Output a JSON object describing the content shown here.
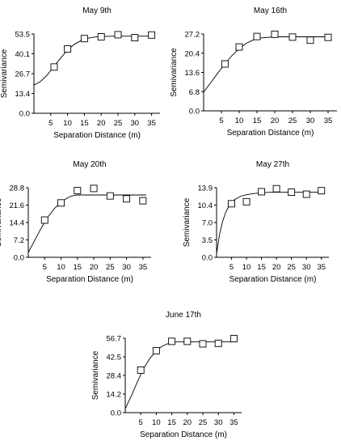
{
  "chart_data": [
    {
      "type": "scatter",
      "title": "May 9th",
      "xlabel": "Separation Distance (m)",
      "ylabel": "Semivariance",
      "xlim": [
        0,
        37.5
      ],
      "ylim": [
        0,
        53.5
      ],
      "xticks": [
        "5",
        "10",
        "15",
        "20",
        "25",
        "30",
        "35"
      ],
      "yticks": [
        "0.0",
        "13.4",
        "26.7",
        "40.1",
        "53.5"
      ],
      "points": {
        "x": [
          6,
          10,
          15,
          20,
          25,
          30,
          35
        ],
        "y": [
          31.2,
          43.4,
          50.4,
          51.6,
          53.0,
          51.0,
          52.8
        ]
      },
      "curve": {
        "x": [
          0,
          2,
          4,
          6,
          8,
          10,
          12,
          14,
          16,
          18,
          20,
          24,
          28,
          32,
          36
        ],
        "y": [
          19.0,
          21.5,
          26.0,
          31.7,
          37.5,
          42.6,
          46.5,
          49.0,
          50.6,
          51.4,
          51.8,
          52.0,
          52.0,
          52.0,
          52.0
        ]
      }
    },
    {
      "type": "scatter",
      "title": "May 16th",
      "xlabel": "Separation Distance (m)",
      "ylabel": "Semivariance",
      "xlim": [
        0,
        37.5
      ],
      "ylim": [
        0,
        27.2
      ],
      "xticks": [
        "5",
        "10",
        "15",
        "20",
        "25",
        "30",
        "35"
      ],
      "yticks": [
        "0.0",
        "6.8",
        "13.6",
        "20.4",
        "27.2"
      ],
      "points": {
        "x": [
          6,
          10,
          15,
          20,
          25,
          30,
          35
        ],
        "y": [
          16.6,
          22.6,
          26.3,
          27.1,
          26.1,
          25.0,
          26.0
        ]
      },
      "curve": {
        "x": [
          0,
          2,
          4,
          6,
          8,
          10,
          12,
          14,
          16,
          20,
          24,
          28,
          32,
          36
        ],
        "y": [
          6.6,
          10.0,
          13.4,
          16.6,
          19.6,
          22.0,
          23.9,
          25.1,
          25.8,
          26.2,
          26.2,
          26.2,
          26.2,
          26.2
        ]
      }
    },
    {
      "type": "scatter",
      "title": "May 20th",
      "xlabel": "Separation Distance (m)",
      "ylabel": "Semivariance",
      "xlim": [
        0,
        37.5
      ],
      "ylim": [
        0,
        28.8
      ],
      "xticks": [
        "5",
        "10",
        "15",
        "20",
        "25",
        "30",
        "35"
      ],
      "yticks": [
        "0.0",
        "7.2",
        "14.4",
        "21.6",
        "28.8"
      ],
      "points": {
        "x": [
          5,
          10,
          15,
          20,
          25,
          30,
          35
        ],
        "y": [
          15.4,
          22.5,
          27.6,
          28.5,
          25.4,
          24.2,
          23.4
        ]
      },
      "curve": {
        "x": [
          0,
          2,
          4,
          6,
          8,
          10,
          12,
          13,
          14,
          15,
          18,
          22,
          26,
          30,
          36
        ],
        "y": [
          2.0,
          7.1,
          12.2,
          16.7,
          20.2,
          22.8,
          24.6,
          25.3,
          25.6,
          25.8,
          25.8,
          25.8,
          25.8,
          25.8,
          25.8
        ]
      }
    },
    {
      "type": "scatter",
      "title": "May 27th",
      "xlabel": "Separation Distance (m)",
      "ylabel": "Semivariance",
      "xlim": [
        0,
        37.5
      ],
      "ylim": [
        0,
        13.9
      ],
      "xticks": [
        "5",
        "10",
        "15",
        "20",
        "25",
        "30",
        "35"
      ],
      "yticks": [
        "0.0",
        "3.5",
        "7.0",
        "10.4",
        "13.9"
      ],
      "points": {
        "x": [
          5,
          10,
          15,
          20,
          25,
          30,
          35
        ],
        "y": [
          10.7,
          11.1,
          13.1,
          13.7,
          13.0,
          12.6,
          13.3
        ]
      },
      "curve": {
        "x": [
          0,
          1,
          2,
          3,
          4,
          5,
          6,
          8,
          10,
          12,
          15,
          18,
          22,
          26,
          30,
          36
        ],
        "y": [
          0.7,
          4.6,
          7.1,
          8.9,
          10.1,
          10.9,
          11.5,
          12.2,
          12.5,
          12.7,
          12.9,
          13.0,
          13.0,
          13.0,
          13.0,
          13.0
        ]
      }
    },
    {
      "type": "scatter",
      "title": "June 17th",
      "xlabel": "Separation Distance (m)",
      "ylabel": "Semivariance",
      "xlim": [
        0,
        37.5
      ],
      "ylim": [
        0,
        56.7
      ],
      "xticks": [
        "5",
        "10",
        "15",
        "20",
        "25",
        "30",
        "35"
      ],
      "yticks": [
        "0.0",
        "14.2",
        "28.4",
        "42.5",
        "56.7"
      ],
      "points": {
        "x": [
          5,
          10,
          15,
          20,
          25,
          30,
          35
        ],
        "y": [
          32.4,
          47.2,
          54.3,
          54.3,
          52.4,
          52.8,
          56.4
        ]
      },
      "curve": {
        "x": [
          0,
          2,
          4,
          6,
          8,
          10,
          12,
          14,
          15,
          16,
          18,
          22,
          26,
          30,
          36
        ],
        "y": [
          3.0,
          13.0,
          24.0,
          34.0,
          41.5,
          47.0,
          50.8,
          52.8,
          53.5,
          53.8,
          54.0,
          54.0,
          54.0,
          54.0,
          54.0
        ]
      }
    }
  ]
}
